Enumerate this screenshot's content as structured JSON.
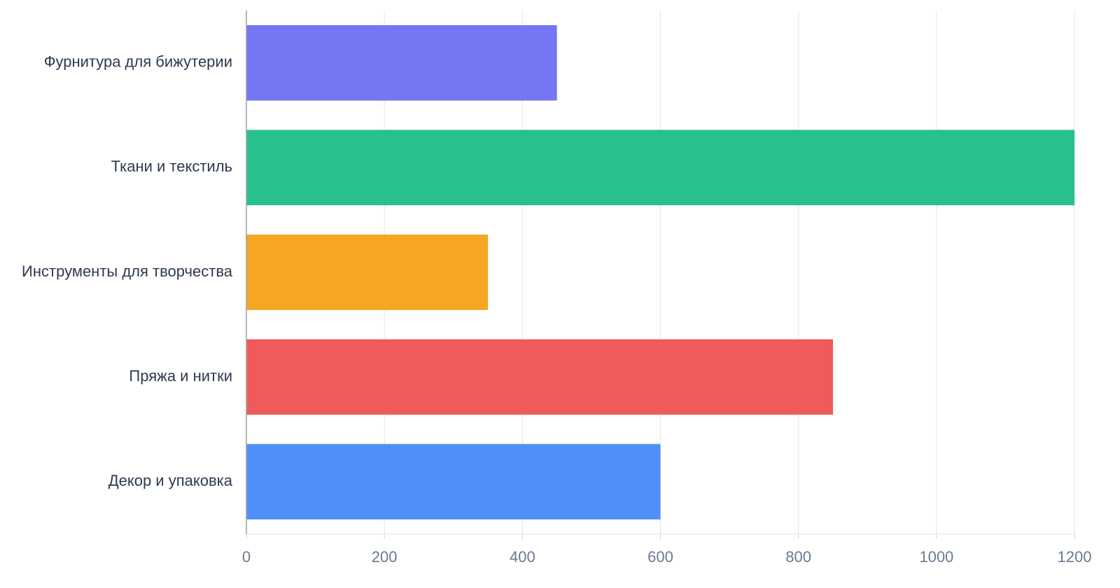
{
  "chart_data": {
    "type": "hbar",
    "categories": [
      "Фурнитура для бижутерии",
      "Ткани и текстиль",
      "Инструменты для творчества",
      "Пряжа и нитки",
      "Декор и упаковка"
    ],
    "values": [
      450,
      1200,
      350,
      850,
      600
    ],
    "colors": [
      "#7476f2",
      "#28c08e",
      "#f5a623",
      "#f05a5a",
      "#4f8ff7"
    ],
    "xlim": [
      0,
      1200
    ],
    "xticks": [
      0,
      200,
      400,
      600,
      800,
      1000,
      1200
    ],
    "grid": true
  }
}
